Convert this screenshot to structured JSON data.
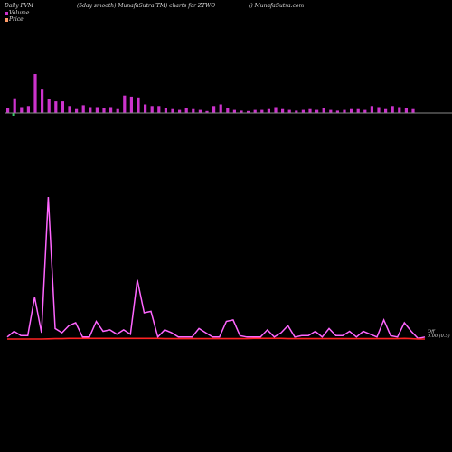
{
  "header": {
    "left": "Daily PVM",
    "center": "(5day smooth) MunafaSutra(TM) charts for ZTWO",
    "right": "() MunafaSutra.com"
  },
  "legend": {
    "volume_label": "Volume",
    "price_label": "Price",
    "volume_color": "#cc33cc",
    "price_color": "#ff9966"
  },
  "last_value_label": {
    "line1": "Off",
    "line2": "0.00 (0.5)"
  },
  "colors": {
    "background": "#000000",
    "volume_bar": "#cc33cc",
    "volume_bar_down": "#33cc66",
    "baseline": "#888888",
    "volume_line": "#ff66ff",
    "price_line": "#ff2222"
  },
  "chart_data": {
    "type": "bar",
    "title": "",
    "xlabel": "",
    "ylabel": "",
    "grid": false,
    "legend_placement": "top-left",
    "volume_bars": [
      0.12,
      0.38,
      0.15,
      0.18,
      1.0,
      0.6,
      0.35,
      0.3,
      0.3,
      0.18,
      0.1,
      0.2,
      0.15,
      0.15,
      0.12,
      0.15,
      0.1,
      0.45,
      0.42,
      0.4,
      0.22,
      0.18,
      0.18,
      0.12,
      0.1,
      0.08,
      0.12,
      0.1,
      0.08,
      0.05,
      0.18,
      0.22,
      0.12,
      0.08,
      0.06,
      0.05,
      0.08,
      0.08,
      0.1,
      0.15,
      0.1,
      0.08,
      0.06,
      0.08,
      0.1,
      0.08,
      0.12,
      0.08,
      0.06,
      0.08,
      0.1,
      0.1,
      0.08,
      0.18,
      0.15,
      0.1,
      0.18,
      0.15,
      0.12,
      0.1
    ],
    "volume_down_bars": [
      1
    ],
    "volume_line": [
      0.02,
      0.06,
      0.03,
      0.03,
      0.3,
      0.05,
      1.0,
      0.08,
      0.05,
      0.1,
      0.12,
      0.02,
      0.02,
      0.13,
      0.06,
      0.07,
      0.04,
      0.07,
      0.04,
      0.42,
      0.19,
      0.2,
      0.02,
      0.07,
      0.05,
      0.02,
      0.02,
      0.02,
      0.08,
      0.05,
      0.02,
      0.02,
      0.13,
      0.14,
      0.03,
      0.02,
      0.02,
      0.02,
      0.07,
      0.02,
      0.05,
      0.1,
      0.02,
      0.03,
      0.03,
      0.06,
      0.02,
      0.08,
      0.03,
      0.03,
      0.06,
      0.02,
      0.06,
      0.04,
      0.02,
      0.14,
      0.03,
      0.02,
      0.12,
      0.06,
      0.01,
      0.02
    ],
    "price_line": [
      0.5,
      0.5,
      0.5,
      0.5,
      0.5,
      0.5,
      0.51,
      0.52,
      0.52,
      0.53,
      0.53,
      0.53,
      0.53,
      0.53,
      0.53,
      0.53,
      0.53,
      0.53,
      0.53,
      0.53,
      0.53,
      0.53,
      0.53,
      0.52,
      0.52,
      0.52,
      0.52,
      0.52,
      0.52,
      0.52,
      0.52,
      0.52,
      0.52,
      0.52,
      0.52,
      0.52,
      0.53,
      0.53,
      0.53,
      0.53,
      0.53,
      0.52,
      0.52,
      0.52,
      0.52,
      0.52,
      0.52,
      0.52,
      0.52,
      0.52,
      0.52,
      0.52,
      0.52,
      0.52,
      0.52,
      0.52,
      0.52,
      0.52,
      0.53,
      0.52,
      0.5,
      0.5
    ]
  }
}
